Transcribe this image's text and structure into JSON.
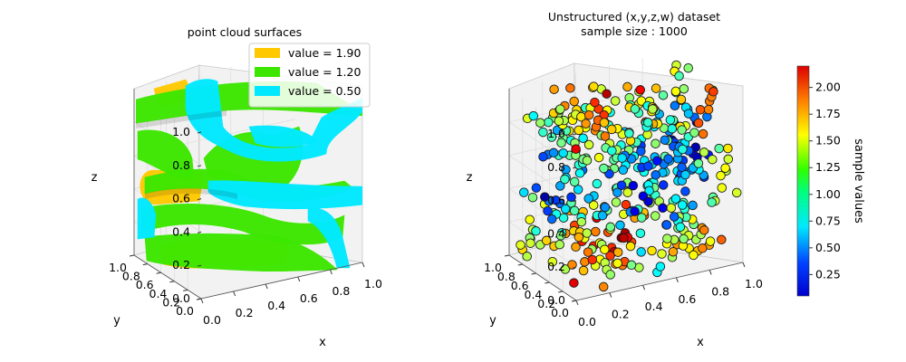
{
  "colors": {
    "surface_high": "#ffc800",
    "surface_mid": "#3ce600",
    "surface_low": "#00e8ff"
  },
  "chart_data": [
    {
      "type": "3d-isosurface",
      "title": "point cloud surfaces",
      "xlabel": "x",
      "ylabel": "y",
      "zlabel": "z",
      "xlim": [
        0,
        1
      ],
      "ylim": [
        0,
        1
      ],
      "zlim": [
        0,
        1
      ],
      "x_ticks": [
        "0.0",
        "0.2",
        "0.4",
        "0.6",
        "0.8",
        "1.0"
      ],
      "y_ticks": [
        "0.0",
        "0.2",
        "0.4",
        "0.6",
        "0.8",
        "1.0"
      ],
      "z_ticks": [
        "0.0",
        "0.2",
        "0.4",
        "0.6",
        "0.8",
        "1.0"
      ],
      "legend_position": "top-right",
      "isosurfaces": [
        {
          "label": "value = 1.90",
          "value": 1.9,
          "color": "#ffc800"
        },
        {
          "label": "value = 1.20",
          "value": 1.2,
          "color": "#3ce600"
        },
        {
          "label": "value = 0.50",
          "value": 0.5,
          "color": "#00e8ff"
        }
      ]
    },
    {
      "type": "3d-scatter",
      "title": "Unstructured (x,y,z,w) dataset\nsample size : 1000",
      "title_lines": [
        "Unstructured (x,y,z,w) dataset",
        "sample size : 1000"
      ],
      "sample_size": 1000,
      "xlabel": "x",
      "ylabel": "y",
      "zlabel": "z",
      "xlim": [
        0,
        1
      ],
      "ylim": [
        0,
        1
      ],
      "zlim": [
        0,
        1
      ],
      "x_ticks": [
        "0.0",
        "0.2",
        "0.4",
        "0.6",
        "0.8",
        "1.0"
      ],
      "y_ticks": [
        "0.0",
        "0.2",
        "0.4",
        "0.6",
        "0.8",
        "1.0"
      ],
      "z_ticks": [
        "0.0",
        "0.2",
        "0.4",
        "0.6",
        "0.8",
        "1.0"
      ],
      "colorbar": {
        "label": "sample values",
        "colormap": "jet",
        "range": [
          0.05,
          2.2
        ],
        "ticks": [
          "0.25",
          "0.50",
          "0.75",
          "1.00",
          "1.25",
          "1.50",
          "1.75",
          "2.00"
        ]
      }
    }
  ]
}
